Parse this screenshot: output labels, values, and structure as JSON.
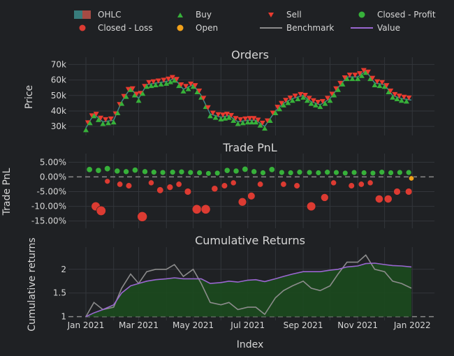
{
  "legend": [
    {
      "label": "OHLC",
      "kind": "ohlc",
      "color": "#3d8c8c"
    },
    {
      "label": "Buy",
      "kind": "tri-up",
      "color": "#37b13a"
    },
    {
      "label": "Sell",
      "kind": "tri-down",
      "color": "#ea3b2f"
    },
    {
      "label": "Closed - Profit",
      "kind": "dot",
      "color": "#37b13a"
    },
    {
      "label": "Closed - Loss",
      "kind": "dot",
      "color": "#dc3b32"
    },
    {
      "label": "Open",
      "kind": "dot",
      "color": "#f2a11a"
    },
    {
      "label": "Benchmark",
      "kind": "line",
      "color": "#8c8c8c"
    },
    {
      "label": "Value",
      "kind": "line",
      "color": "#9a67d1"
    }
  ],
  "x_axis": {
    "title": "Index",
    "ticks": [
      "Jan 2021",
      "Mar 2021",
      "May 2021",
      "Jul 2021",
      "Sep 2021",
      "Nov 2021",
      "Jan 2022"
    ]
  },
  "chart_data": [
    {
      "type": "line",
      "title": "Orders",
      "ylabel": "Price",
      "y_ticks": [
        "30k",
        "40k",
        "50k",
        "60k",
        "70k"
      ],
      "ylim": [
        26000,
        72000
      ],
      "series": [
        {
          "name": "OHLC",
          "x": [
            "2021-01-01",
            "2021-01-10",
            "2021-01-20",
            "2021-02-01",
            "2021-02-10",
            "2021-02-20",
            "2021-03-01",
            "2021-03-10",
            "2021-03-20",
            "2021-04-01",
            "2021-04-10",
            "2021-04-20",
            "2021-05-01",
            "2021-05-10",
            "2021-05-20",
            "2021-06-01",
            "2021-06-10",
            "2021-06-20",
            "2021-07-01",
            "2021-07-10",
            "2021-07-20",
            "2021-08-01",
            "2021-08-10",
            "2021-08-20",
            "2021-09-01",
            "2021-09-10",
            "2021-09-20",
            "2021-10-01",
            "2021-10-10",
            "2021-10-20",
            "2021-11-01",
            "2021-11-10",
            "2021-11-20",
            "2021-12-01",
            "2021-12-10",
            "2021-12-20",
            "2021-12-31"
          ],
          "values": [
            29000,
            38000,
            33000,
            34000,
            46000,
            55000,
            48000,
            57000,
            58000,
            59000,
            61000,
            54000,
            57000,
            50000,
            38000,
            36000,
            37000,
            33000,
            34000,
            34000,
            30000,
            40000,
            45000,
            48000,
            50000,
            46000,
            44000,
            48000,
            55000,
            62000,
            62000,
            66000,
            58000,
            57000,
            50000,
            48000,
            47000
          ]
        }
      ]
    },
    {
      "type": "scatter",
      "title": "Trade PnL",
      "ylabel": "Trade PnL",
      "y_ticks": [
        "5.00%",
        "0.00%",
        "-5.00%",
        "-10.00%",
        "-15.00%"
      ],
      "ylim": [
        -16.5,
        6.5
      ],
      "series": [
        {
          "name": "Closed - Profit",
          "x": [
            "2021-01-05",
            "2021-01-15",
            "2021-01-25",
            "2021-02-05",
            "2021-02-15",
            "2021-02-25",
            "2021-03-08",
            "2021-03-18",
            "2021-03-28",
            "2021-04-08",
            "2021-04-18",
            "2021-04-28",
            "2021-05-08",
            "2021-05-18",
            "2021-05-28",
            "2021-06-08",
            "2021-06-18",
            "2021-06-28",
            "2021-07-08",
            "2021-07-18",
            "2021-07-28",
            "2021-08-08",
            "2021-08-18",
            "2021-08-28",
            "2021-09-08",
            "2021-09-18",
            "2021-09-28",
            "2021-10-08",
            "2021-10-18",
            "2021-10-28",
            "2021-11-08",
            "2021-11-18",
            "2021-11-28",
            "2021-12-08",
            "2021-12-18",
            "2021-12-28"
          ],
          "values": [
            2.5,
            2.2,
            2.8,
            2.0,
            1.8,
            2.3,
            1.8,
            1.6,
            1.5,
            1.6,
            1.7,
            1.5,
            1.4,
            1.2,
            1.3,
            2.2,
            2.0,
            2.6,
            1.8,
            1.4,
            2.5,
            1.5,
            1.4,
            1.6,
            1.5,
            1.4,
            1.6,
            1.5,
            1.3,
            1.5,
            1.4,
            1.3,
            1.6,
            1.4,
            1.5,
            1.5
          ]
        },
        {
          "name": "Closed - Loss",
          "x": [
            "2021-01-12",
            "2021-01-18",
            "2021-01-25",
            "2021-02-08",
            "2021-02-18",
            "2021-03-05",
            "2021-03-15",
            "2021-03-25",
            "2021-04-05",
            "2021-04-15",
            "2021-04-25",
            "2021-05-05",
            "2021-05-15",
            "2021-05-25",
            "2021-06-05",
            "2021-06-15",
            "2021-06-25",
            "2021-07-05",
            "2021-07-15",
            "2021-08-10",
            "2021-08-25",
            "2021-09-10",
            "2021-09-25",
            "2021-10-05",
            "2021-10-25",
            "2021-11-05",
            "2021-11-15",
            "2021-11-25",
            "2021-12-05",
            "2021-12-15",
            "2021-12-28"
          ],
          "values": [
            -10.0,
            -11.5,
            -1.5,
            -2.5,
            -3.0,
            -13.5,
            -2.0,
            -4.5,
            -3.5,
            -2.5,
            -5.0,
            -11.0,
            -11.0,
            -4.0,
            -3.0,
            -2.0,
            -8.5,
            -6.5,
            -2.5,
            -2.5,
            -3.0,
            -10.0,
            -7.0,
            -2.0,
            -3.0,
            -2.5,
            -2.0,
            -7.5,
            -7.5,
            -5.0,
            -5.0
          ]
        },
        {
          "name": "Open",
          "x": [
            "2021-12-31"
          ],
          "values": [
            -0.5
          ]
        }
      ]
    },
    {
      "type": "area",
      "title": "Cumulative Returns",
      "ylabel": "Cumulative returns",
      "y_ticks": [
        "2",
        "1.5",
        "1"
      ],
      "ylim": [
        0.98,
        2.38
      ],
      "series": [
        {
          "name": "Benchmark",
          "x": [
            "2021-01-01",
            "2021-01-10",
            "2021-01-20",
            "2021-02-01",
            "2021-02-10",
            "2021-02-20",
            "2021-03-01",
            "2021-03-10",
            "2021-03-20",
            "2021-04-01",
            "2021-04-10",
            "2021-04-20",
            "2021-05-01",
            "2021-05-10",
            "2021-05-20",
            "2021-06-01",
            "2021-06-10",
            "2021-06-20",
            "2021-07-01",
            "2021-07-10",
            "2021-07-20",
            "2021-08-01",
            "2021-08-10",
            "2021-08-20",
            "2021-09-01",
            "2021-09-10",
            "2021-09-20",
            "2021-10-01",
            "2021-10-10",
            "2021-10-20",
            "2021-11-01",
            "2021-11-10",
            "2021-11-20",
            "2021-12-01",
            "2021-12-10",
            "2021-12-20",
            "2021-12-31"
          ],
          "values": [
            1.0,
            1.3,
            1.15,
            1.2,
            1.6,
            1.9,
            1.7,
            1.95,
            2.0,
            2.0,
            2.1,
            1.85,
            2.0,
            1.7,
            1.3,
            1.25,
            1.3,
            1.15,
            1.2,
            1.2,
            1.05,
            1.4,
            1.55,
            1.65,
            1.75,
            1.6,
            1.55,
            1.65,
            1.9,
            2.15,
            2.15,
            2.3,
            2.0,
            1.95,
            1.75,
            1.7,
            1.6
          ]
        },
        {
          "name": "Value",
          "x": [
            "2021-01-01",
            "2021-01-10",
            "2021-01-20",
            "2021-02-01",
            "2021-02-10",
            "2021-02-20",
            "2021-03-01",
            "2021-03-10",
            "2021-03-20",
            "2021-04-01",
            "2021-04-10",
            "2021-04-20",
            "2021-05-01",
            "2021-05-10",
            "2021-05-20",
            "2021-06-01",
            "2021-06-10",
            "2021-06-20",
            "2021-07-01",
            "2021-07-10",
            "2021-07-20",
            "2021-08-01",
            "2021-08-10",
            "2021-08-20",
            "2021-09-01",
            "2021-09-10",
            "2021-09-20",
            "2021-10-01",
            "2021-10-10",
            "2021-10-20",
            "2021-11-01",
            "2021-11-10",
            "2021-11-20",
            "2021-12-01",
            "2021-12-10",
            "2021-12-20",
            "2021-12-31"
          ],
          "values": [
            1.0,
            1.08,
            1.15,
            1.25,
            1.5,
            1.65,
            1.7,
            1.75,
            1.78,
            1.8,
            1.82,
            1.8,
            1.8,
            1.8,
            1.7,
            1.72,
            1.75,
            1.73,
            1.77,
            1.78,
            1.74,
            1.8,
            1.85,
            1.9,
            1.95,
            1.95,
            1.95,
            1.98,
            2.0,
            2.05,
            2.07,
            2.12,
            2.13,
            2.1,
            2.08,
            2.07,
            2.05
          ]
        }
      ]
    }
  ]
}
